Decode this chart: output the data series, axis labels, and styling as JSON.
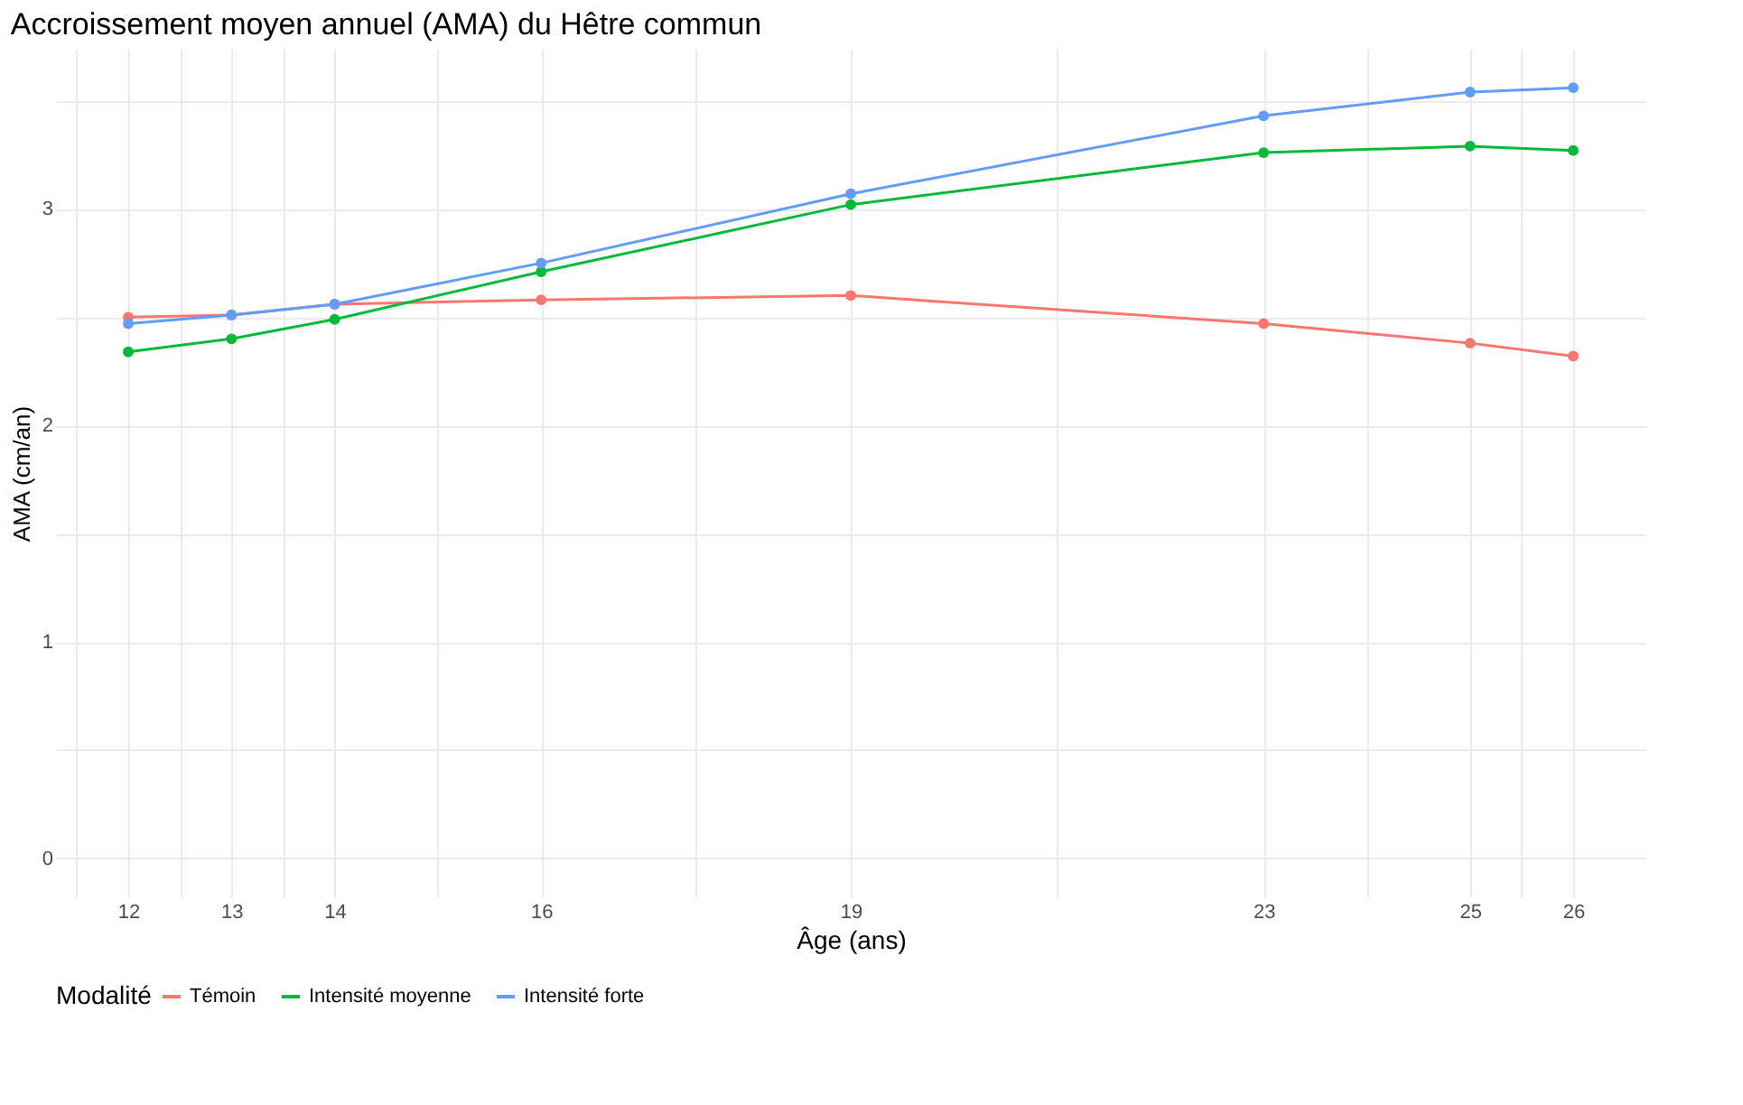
{
  "chart_data": {
    "type": "line",
    "title": "Accroissement moyen annuel (AMA) du Hêtre commun",
    "xlabel": "Âge (ans)",
    "ylabel": "AMA (cm/an)",
    "legend_title": "Modalité",
    "x": [
      12,
      13,
      14,
      16,
      19,
      23,
      25,
      26
    ],
    "series": [
      {
        "name": "Témoin",
        "color": "#f8766d",
        "values": [
          2.5,
          2.51,
          2.56,
          2.58,
          2.6,
          2.47,
          2.38,
          2.32
        ]
      },
      {
        "name": "Intensité moyenne",
        "color": "#00ba38",
        "values": [
          2.34,
          2.4,
          2.49,
          2.71,
          3.02,
          3.26,
          3.29,
          3.27
        ]
      },
      {
        "name": "Intensité forte",
        "color": "#619cff",
        "values": [
          2.47,
          2.51,
          2.56,
          2.75,
          3.07,
          3.43,
          3.54,
          3.56
        ]
      }
    ],
    "xlim": [
      11.3,
      26.7
    ],
    "ylim": [
      -0.18,
      3.74
    ],
    "xticks": [
      {
        "value": 11.5,
        "label": null
      },
      12,
      {
        "value": 12.5,
        "label": null
      },
      13,
      {
        "value": 13.5,
        "label": null
      },
      14,
      {
        "value": 15,
        "label": null
      },
      16,
      {
        "value": 17.5,
        "label": null
      },
      19,
      {
        "value": 21,
        "label": null
      },
      23,
      {
        "value": 24,
        "label": null
      },
      25,
      {
        "value": 25.5,
        "label": null
      },
      26
    ],
    "yticks": [
      0,
      {
        "value": 0.5,
        "label": null
      },
      1,
      {
        "value": 1.5,
        "label": null
      },
      2,
      {
        "value": 2.5,
        "label": null
      },
      3,
      {
        "value": 3.5,
        "label": null
      }
    ],
    "grid": true,
    "legend": "bottom",
    "marker": "circle",
    "line_style": "solid"
  }
}
